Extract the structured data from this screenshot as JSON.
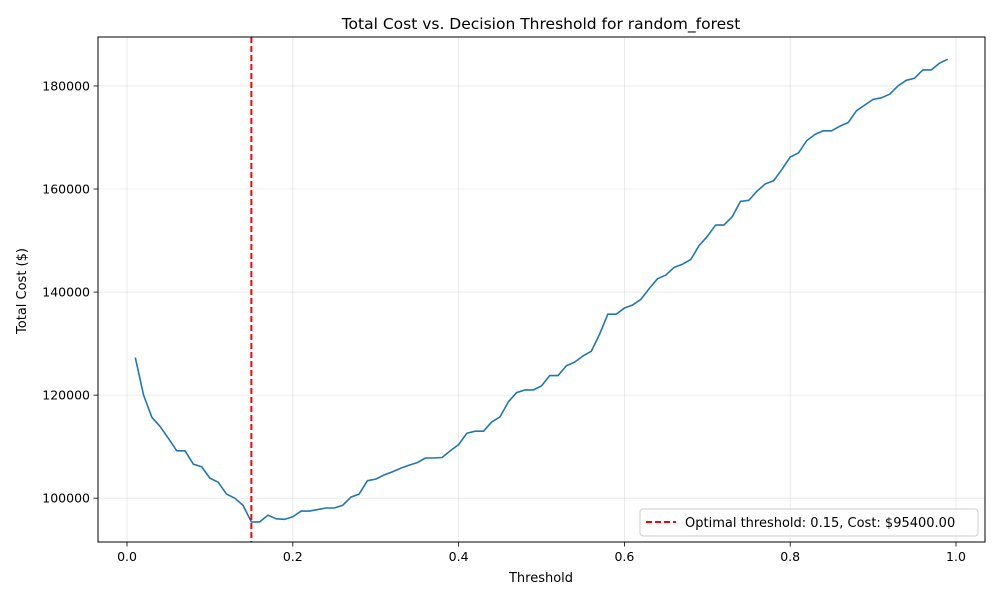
{
  "chart_data": {
    "type": "line",
    "title": "Total Cost vs. Decision Threshold for random_forest",
    "xlabel": "Threshold",
    "ylabel": "Total Cost ($)",
    "xlim": [
      -0.035,
      1.035
    ],
    "ylim": [
      91500,
      189500
    ],
    "xticks": [
      0.0,
      0.2,
      0.4,
      0.6,
      0.8,
      1.0
    ],
    "xtick_labels": [
      "0.0",
      "0.2",
      "0.4",
      "0.6",
      "0.8",
      "1.0"
    ],
    "yticks": [
      100000,
      120000,
      140000,
      160000,
      180000
    ],
    "ytick_labels": [
      "100000",
      "120000",
      "140000",
      "160000",
      "180000"
    ],
    "grid": true,
    "legend_position": "bottom-right",
    "series": [
      {
        "color": "#1f77b4",
        "x": [
          0.01,
          0.02,
          0.03,
          0.04,
          0.05,
          0.06,
          0.07,
          0.08,
          0.09,
          0.1,
          0.11,
          0.12,
          0.13,
          0.14,
          0.15,
          0.16,
          0.17,
          0.18,
          0.19,
          0.2,
          0.21,
          0.22,
          0.23,
          0.24,
          0.25,
          0.26,
          0.27,
          0.28,
          0.29,
          0.3,
          0.31,
          0.32,
          0.33,
          0.34,
          0.35,
          0.36,
          0.37,
          0.38,
          0.39,
          0.4,
          0.41,
          0.42,
          0.43,
          0.44,
          0.45,
          0.46,
          0.47,
          0.48,
          0.49,
          0.5,
          0.51,
          0.52,
          0.53,
          0.54,
          0.55,
          0.56,
          0.57,
          0.58,
          0.59,
          0.6,
          0.61,
          0.62,
          0.63,
          0.64,
          0.65,
          0.66,
          0.67,
          0.68,
          0.69,
          0.7,
          0.71,
          0.72,
          0.73,
          0.74,
          0.75,
          0.76,
          0.77,
          0.78,
          0.79,
          0.8,
          0.81,
          0.82,
          0.83,
          0.84,
          0.85,
          0.86,
          0.87,
          0.88,
          0.89,
          0.9,
          0.91,
          0.92,
          0.93,
          0.94,
          0.95,
          0.96,
          0.97,
          0.98,
          0.99
        ],
        "y": [
          127300,
          120000,
          115700,
          113900,
          111600,
          109200,
          109200,
          106600,
          106100,
          103900,
          103100,
          100800,
          100000,
          98600,
          95400,
          95400,
          96700,
          96000,
          95900,
          96400,
          97500,
          97500,
          97800,
          98100,
          98100,
          98600,
          100200,
          100800,
          103400,
          103700,
          104500,
          105100,
          105800,
          106400,
          106900,
          107800,
          107800,
          107900,
          109200,
          110400,
          112600,
          113000,
          113000,
          114800,
          115800,
          118700,
          120500,
          121000,
          121000,
          121800,
          123800,
          123800,
          125700,
          126400,
          127600,
          128500,
          131800,
          135700,
          135700,
          136900,
          137500,
          138600,
          140700,
          142600,
          143300,
          144800,
          145400,
          146300,
          149000,
          150800,
          153000,
          153000,
          154600,
          157600,
          157800,
          159600,
          161000,
          161600,
          163800,
          166200,
          167000,
          169400,
          170600,
          171300,
          171300,
          172200,
          172900,
          175200,
          176300,
          177400,
          177700,
          178400,
          180000,
          181100,
          181500,
          183100,
          183100,
          184400,
          185200
        ]
      }
    ],
    "reference_line": {
      "type": "vertical",
      "x": 0.15,
      "color": "#ff0000",
      "style": "dashed",
      "legend_label": "Optimal threshold: 0.15, Cost: $95400.00"
    }
  }
}
